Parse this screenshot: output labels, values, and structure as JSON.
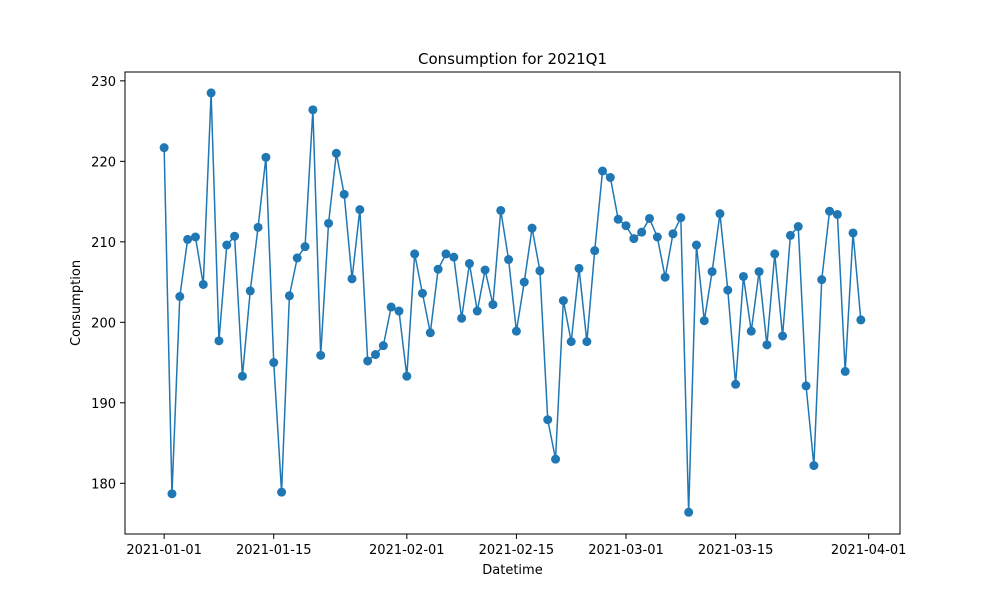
{
  "chart_data": {
    "type": "line",
    "title": "Consumption for 2021Q1",
    "xlabel": "Datetime",
    "ylabel": "Consumption",
    "x_start": "2021-01-01",
    "x_end": "2021-03-31",
    "xlim": [
      "2020-12-27",
      "2021-04-05"
    ],
    "ylim": [
      173.7,
      231.1
    ],
    "x_tick_labels": [
      "2021-01-01",
      "2021-01-15",
      "2021-02-01",
      "2021-02-15",
      "2021-03-01",
      "2021-03-15",
      "2021-04-01"
    ],
    "y_tick_values": [
      180,
      190,
      200,
      210,
      220,
      230
    ],
    "grid": false,
    "marker": "circle",
    "series": [
      {
        "color": "#1f77b4",
        "values": [
          221.7,
          178.7,
          203.2,
          210.3,
          210.6,
          204.7,
          228.5,
          197.7,
          209.6,
          210.7,
          193.3,
          203.9,
          211.8,
          220.5,
          195.0,
          178.9,
          203.3,
          208.0,
          209.4,
          226.4,
          195.9,
          212.3,
          221.0,
          215.9,
          205.4,
          214.0,
          195.2,
          196.0,
          197.1,
          201.9,
          201.4,
          193.3,
          208.5,
          203.6,
          198.7,
          206.6,
          208.5,
          208.1,
          200.5,
          207.3,
          201.4,
          206.5,
          202.2,
          213.9,
          207.8,
          198.9,
          205.0,
          211.7,
          206.4,
          187.9,
          183.0,
          202.7,
          197.6,
          206.7,
          197.6,
          208.9,
          218.8,
          218.0,
          212.8,
          212.0,
          210.4,
          211.2,
          212.9,
          210.6,
          205.6,
          211.0,
          213.0,
          176.4,
          209.6,
          200.2,
          206.3,
          213.5,
          204.0,
          192.3,
          205.7,
          198.9,
          206.3,
          197.2,
          208.5,
          198.3,
          210.8,
          211.9,
          192.1,
          182.2,
          205.3,
          213.8,
          213.4,
          193.9,
          211.1,
          200.3
        ]
      }
    ]
  }
}
